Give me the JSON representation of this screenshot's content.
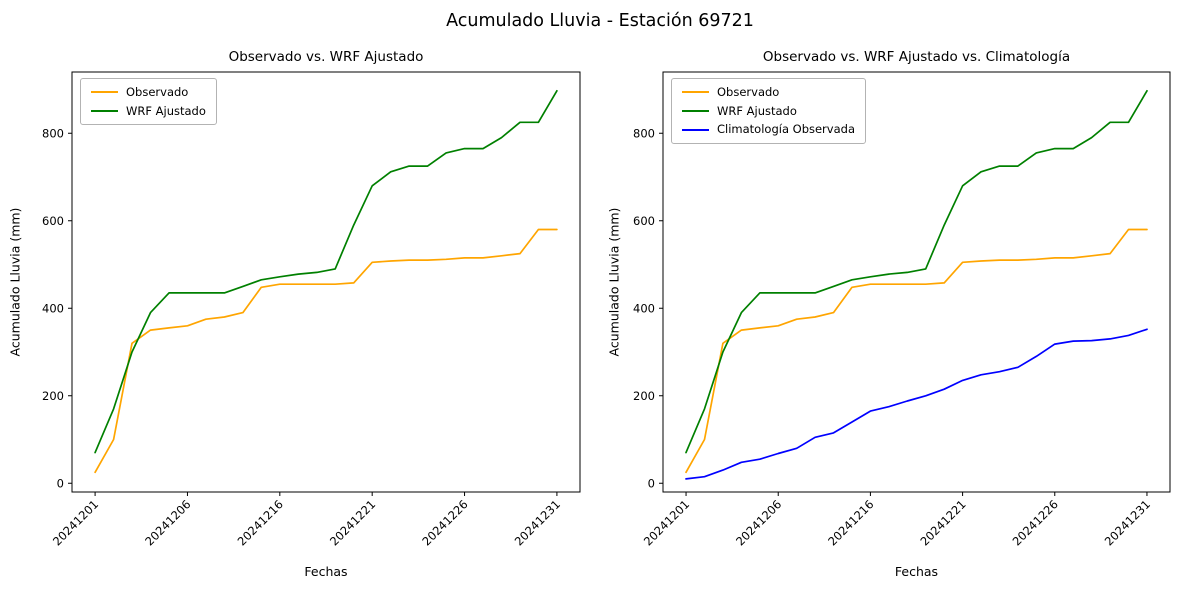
{
  "figure": {
    "suptitle": "Acumulado Lluvia - Estación 69721"
  },
  "chart_data": {
    "type": "line",
    "x_dates": [
      "20241201",
      "20241202",
      "20241203",
      "20241204",
      "20241205",
      "20241206",
      "20241212",
      "20241213",
      "20241214",
      "20241215",
      "20241216",
      "20241217",
      "20241218",
      "20241219",
      "20241220",
      "20241221",
      "20241222",
      "20241223",
      "20241224",
      "20241225",
      "20241226",
      "20241227",
      "20241228",
      "20241229",
      "20241230",
      "20241231"
    ],
    "x_tick_labels": [
      "20241201",
      "20241206",
      "20241216",
      "20241221",
      "20241226",
      "20241231"
    ],
    "x_tick_indices": [
      0,
      5,
      10,
      15,
      20,
      25
    ],
    "y_ticks": [
      0,
      200,
      400,
      600,
      800
    ],
    "ylim": [
      -20,
      940
    ],
    "grid": false,
    "legend_position": "upper left",
    "series": [
      {
        "name": "Observado",
        "color": "#ffa500",
        "values": [
          25,
          100,
          320,
          350,
          355,
          360,
          375,
          380,
          390,
          448,
          455,
          455,
          455,
          455,
          458,
          505,
          508,
          510,
          510,
          512,
          515,
          515,
          520,
          525,
          580,
          580
        ]
      },
      {
        "name": "WRF Ajustado",
        "color": "#008000",
        "values": [
          70,
          170,
          300,
          390,
          435,
          435,
          435,
          435,
          450,
          465,
          472,
          478,
          482,
          490,
          590,
          680,
          712,
          725,
          725,
          755,
          765,
          765,
          790,
          825,
          825,
          897
        ]
      },
      {
        "name": "Climatología Observada",
        "color": "#0000ff",
        "values": [
          10,
          15,
          30,
          48,
          55,
          68,
          80,
          105,
          115,
          140,
          165,
          175,
          188,
          200,
          215,
          235,
          248,
          255,
          265,
          290,
          318,
          325,
          326,
          330,
          338,
          352
        ]
      }
    ],
    "charts": [
      {
        "title": "Observado vs. WRF Ajustado",
        "xlabel": "Fechas",
        "ylabel": "Acumulado Lluvia (mm)",
        "series": [
          "Observado",
          "WRF Ajustado"
        ]
      },
      {
        "title": "Observado vs. WRF Ajustado vs. Climatología",
        "xlabel": "Fechas",
        "ylabel": "Acumulado Lluvia (mm)",
        "series": [
          "Observado",
          "WRF Ajustado",
          "Climatología Observada"
        ]
      }
    ]
  }
}
